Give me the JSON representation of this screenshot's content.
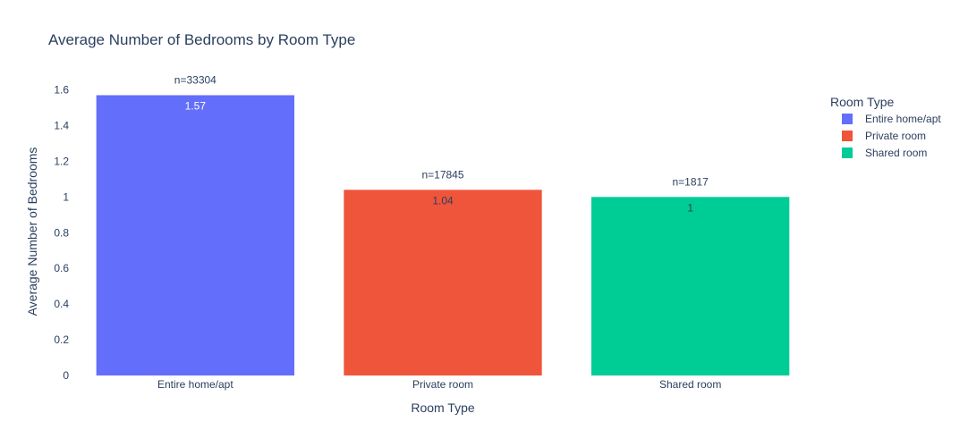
{
  "chart_data": {
    "type": "bar",
    "title": "Average Number of Bedrooms by Room Type",
    "xlabel": "Room Type",
    "ylabel": "Average Number of Bedrooms",
    "categories": [
      "Entire home/apt",
      "Private room",
      "Shared room"
    ],
    "values": [
      1.57,
      1.04,
      1
    ],
    "value_labels": [
      "1.57",
      "1.04",
      "1"
    ],
    "count_labels": [
      "n=33304",
      "n=17845",
      "n=1817"
    ],
    "colors": [
      "#636efa",
      "#ef553b",
      "#00cc96"
    ],
    "value_label_colors": [
      "#ffffff",
      "#2a3f5f",
      "#2a3f5f"
    ],
    "ylim": [
      0,
      1.6526
    ],
    "yticks": [
      0,
      0.2,
      0.4,
      0.6,
      0.8,
      1,
      1.2,
      1.4,
      1.6
    ],
    "ytick_labels": [
      "0",
      "0.2",
      "0.4",
      "0.6",
      "0.8",
      "1",
      "1.2",
      "1.4",
      "1.6"
    ],
    "grid": false,
    "legend": {
      "title": "Room Type",
      "placement": "top-right",
      "entries": [
        "Entire home/apt",
        "Private room",
        "Shared room"
      ]
    }
  }
}
